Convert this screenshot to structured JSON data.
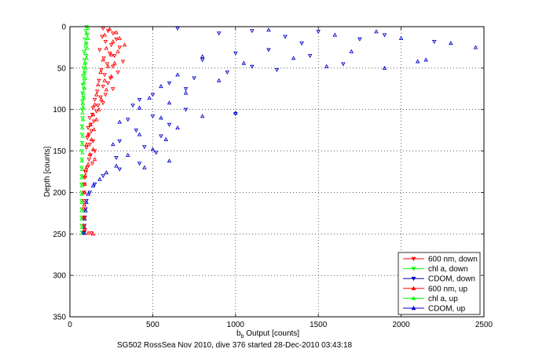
{
  "chart_data": {
    "type": "scatter",
    "title": "",
    "xlabel_main": "b",
    "xlabel_sub": "b",
    "xlabel_rest": " Output [counts]",
    "ylabel": "Depth [counts]",
    "caption": "SG502 RossSea Nov 2010, dive 376 started 28-Dec-2010 03:43:18",
    "xlim": [
      0,
      2500
    ],
    "ylim": [
      350,
      0
    ],
    "xticks": [
      0,
      500,
      1000,
      1500,
      2000,
      2500
    ],
    "yticks": [
      0,
      50,
      100,
      150,
      200,
      250,
      300,
      350
    ],
    "grid": true,
    "legend_position": "bottom-right",
    "series": [
      {
        "name": "600 nm, down",
        "color": "#ff0000",
        "marker": "triangle-down",
        "line": false
      },
      {
        "name": "chl a, down",
        "color": "#00ff00",
        "marker": "triangle-down",
        "line": false
      },
      {
        "name": "CDOM, down",
        "color": "#0000cc",
        "marker": "triangle-down",
        "line": false
      },
      {
        "name": "600 nm, up",
        "color": "#ff0000",
        "marker": "triangle-up",
        "line": false
      },
      {
        "name": "chl a, up",
        "color": "#00ff00",
        "marker": "triangle-up",
        "line": false
      },
      {
        "name": "CDOM, up",
        "color": "#0000cc",
        "marker": "triangle-up",
        "line": false
      }
    ],
    "data": {
      "down_600": [
        [
          200,
          2
        ],
        [
          230,
          5
        ],
        [
          260,
          8
        ],
        [
          195,
          12
        ],
        [
          280,
          15
        ],
        [
          215,
          18
        ],
        [
          250,
          22
        ],
        [
          300,
          25
        ],
        [
          180,
          28
        ],
        [
          240,
          32
        ],
        [
          270,
          35
        ],
        [
          205,
          38
        ],
        [
          320,
          42
        ],
        [
          225,
          45
        ],
        [
          260,
          48
        ],
        [
          190,
          52
        ],
        [
          290,
          55
        ],
        [
          210,
          58
        ],
        [
          245,
          62
        ],
        [
          175,
          65
        ],
        [
          230,
          68
        ],
        [
          200,
          72
        ],
        [
          260,
          75
        ],
        [
          165,
          78
        ],
        [
          215,
          82
        ],
        [
          185,
          85
        ],
        [
          150,
          88
        ],
        [
          200,
          92
        ],
        [
          170,
          95
        ],
        [
          140,
          98
        ],
        [
          160,
          102
        ],
        [
          135,
          106
        ],
        [
          120,
          110
        ],
        [
          145,
          114
        ],
        [
          125,
          118
        ],
        [
          110,
          122
        ],
        [
          130,
          126
        ],
        [
          115,
          130
        ],
        [
          105,
          134
        ],
        [
          140,
          138
        ],
        [
          120,
          142
        ],
        [
          100,
          146
        ],
        [
          150,
          150
        ],
        [
          125,
          155
        ],
        [
          115,
          160
        ],
        [
          135,
          165
        ],
        [
          105,
          170
        ],
        [
          95,
          176
        ],
        [
          90,
          182
        ],
        [
          88,
          190
        ],
        [
          86,
          200
        ],
        [
          85,
          210
        ],
        [
          84,
          220
        ],
        [
          85,
          230
        ],
        [
          86,
          240
        ],
        [
          90,
          245
        ],
        [
          130,
          249
        ]
      ],
      "down_chl": [
        [
          100,
          0
        ],
        [
          95,
          5
        ],
        [
          105,
          10
        ],
        [
          90,
          15
        ],
        [
          100,
          20
        ],
        [
          95,
          25
        ],
        [
          85,
          30
        ],
        [
          98,
          35
        ],
        [
          88,
          40
        ],
        [
          93,
          45
        ],
        [
          82,
          50
        ],
        [
          90,
          55
        ],
        [
          80,
          60
        ],
        [
          87,
          65
        ],
        [
          78,
          70
        ],
        [
          84,
          75
        ],
        [
          76,
          80
        ],
        [
          80,
          85
        ],
        [
          75,
          90
        ],
        [
          78,
          95
        ],
        [
          74,
          100
        ],
        [
          76,
          110
        ],
        [
          73,
          120
        ],
        [
          72,
          130
        ],
        [
          74,
          140
        ],
        [
          71,
          150
        ],
        [
          72,
          160
        ],
        [
          70,
          170
        ],
        [
          71,
          180
        ],
        [
          70,
          190
        ],
        [
          72,
          200
        ],
        [
          70,
          210
        ],
        [
          71,
          220
        ],
        [
          70,
          230
        ],
        [
          72,
          240
        ],
        [
          73,
          248
        ]
      ],
      "down_cdom": [
        [
          650,
          2
        ],
        [
          900,
          8
        ],
        [
          1100,
          5
        ],
        [
          1300,
          12
        ],
        [
          1500,
          6
        ],
        [
          1750,
          15
        ],
        [
          1400,
          20
        ],
        [
          1200,
          28
        ],
        [
          1900,
          10
        ],
        [
          2200,
          18
        ],
        [
          1000,
          32
        ],
        [
          800,
          40
        ],
        [
          1450,
          35
        ],
        [
          1650,
          45
        ],
        [
          1100,
          48
        ],
        [
          950,
          55
        ],
        [
          750,
          62
        ],
        [
          1250,
          52
        ],
        [
          600,
          68
        ],
        [
          700,
          75
        ],
        [
          500,
          82
        ],
        [
          420,
          88
        ],
        [
          380,
          95
        ],
        [
          1000,
          105
        ],
        [
          700,
          100
        ],
        [
          500,
          108
        ],
        [
          350,
          112
        ],
        [
          600,
          118
        ],
        [
          400,
          125
        ],
        [
          550,
          132
        ],
        [
          300,
          138
        ],
        [
          450,
          145
        ],
        [
          520,
          152
        ],
        [
          280,
          158
        ],
        [
          420,
          165
        ],
        [
          300,
          172
        ],
        [
          200,
          180
        ],
        [
          150,
          190
        ],
        [
          120,
          200
        ],
        [
          100,
          210
        ],
        [
          95,
          220
        ],
        [
          90,
          230
        ],
        [
          88,
          240
        ],
        [
          85,
          249
        ]
      ],
      "up_600": [
        [
          240,
          3
        ],
        [
          280,
          7
        ],
        [
          210,
          10
        ],
        [
          300,
          14
        ],
        [
          260,
          18
        ],
        [
          330,
          22
        ],
        [
          220,
          26
        ],
        [
          290,
          30
        ],
        [
          250,
          34
        ],
        [
          200,
          40
        ],
        [
          270,
          44
        ],
        [
          230,
          48
        ],
        [
          185,
          55
        ],
        [
          250,
          60
        ],
        [
          210,
          65
        ],
        [
          170,
          70
        ],
        [
          220,
          76
        ],
        [
          160,
          82
        ],
        [
          190,
          88
        ],
        [
          150,
          94
        ],
        [
          175,
          100
        ],
        [
          140,
          106
        ],
        [
          160,
          112
        ],
        [
          125,
          118
        ],
        [
          145,
          124
        ],
        [
          110,
          130
        ],
        [
          130,
          136
        ],
        [
          100,
          142
        ],
        [
          140,
          148
        ],
        [
          120,
          154
        ],
        [
          150,
          160
        ],
        [
          110,
          166
        ],
        [
          95,
          172
        ],
        [
          92,
          180
        ],
        [
          90,
          190
        ],
        [
          88,
          200
        ],
        [
          87,
          215
        ],
        [
          86,
          230
        ],
        [
          88,
          245
        ],
        [
          110,
          249
        ],
        [
          140,
          250
        ]
      ],
      "up_chl": [
        [
          110,
          2
        ],
        [
          100,
          8
        ],
        [
          108,
          14
        ],
        [
          96,
          20
        ],
        [
          104,
          26
        ],
        [
          92,
          32
        ],
        [
          100,
          38
        ],
        [
          90,
          44
        ],
        [
          96,
          50
        ],
        [
          86,
          56
        ],
        [
          92,
          62
        ],
        [
          84,
          68
        ],
        [
          88,
          74
        ],
        [
          80,
          80
        ],
        [
          84,
          86
        ],
        [
          78,
          92
        ],
        [
          81,
          98
        ],
        [
          76,
          104
        ],
        [
          79,
          112
        ],
        [
          75,
          122
        ],
        [
          77,
          132
        ],
        [
          74,
          142
        ],
        [
          76,
          152
        ],
        [
          73,
          162
        ],
        [
          74,
          172
        ],
        [
          72,
          182
        ],
        [
          73,
          192
        ],
        [
          71,
          202
        ],
        [
          72,
          212
        ],
        [
          71,
          222
        ],
        [
          72,
          232
        ],
        [
          73,
          242
        ],
        [
          74,
          249
        ]
      ],
      "up_cdom": [
        [
          1200,
          4
        ],
        [
          1600,
          10
        ],
        [
          1850,
          6
        ],
        [
          2000,
          14
        ],
        [
          2300,
          20
        ],
        [
          2450,
          25
        ],
        [
          1700,
          30
        ],
        [
          1350,
          38
        ],
        [
          2100,
          42
        ],
        [
          1550,
          48
        ],
        [
          1900,
          50
        ],
        [
          2150,
          40
        ],
        [
          1050,
          44
        ],
        [
          800,
          36
        ],
        [
          650,
          58
        ],
        [
          900,
          65
        ],
        [
          550,
          72
        ],
        [
          700,
          80
        ],
        [
          480,
          86
        ],
        [
          600,
          92
        ],
        [
          420,
          98
        ],
        [
          1000,
          104
        ],
        [
          800,
          108
        ],
        [
          550,
          110
        ],
        [
          300,
          115
        ],
        [
          650,
          122
        ],
        [
          420,
          130
        ],
        [
          580,
          136
        ],
        [
          260,
          142
        ],
        [
          500,
          148
        ],
        [
          350,
          155
        ],
        [
          600,
          162
        ],
        [
          280,
          168
        ],
        [
          450,
          170
        ],
        [
          220,
          176
        ],
        [
          180,
          184
        ],
        [
          140,
          192
        ],
        [
          110,
          202
        ],
        [
          100,
          212
        ],
        [
          95,
          222
        ],
        [
          90,
          232
        ],
        [
          88,
          242
        ],
        [
          86,
          249
        ]
      ]
    }
  }
}
